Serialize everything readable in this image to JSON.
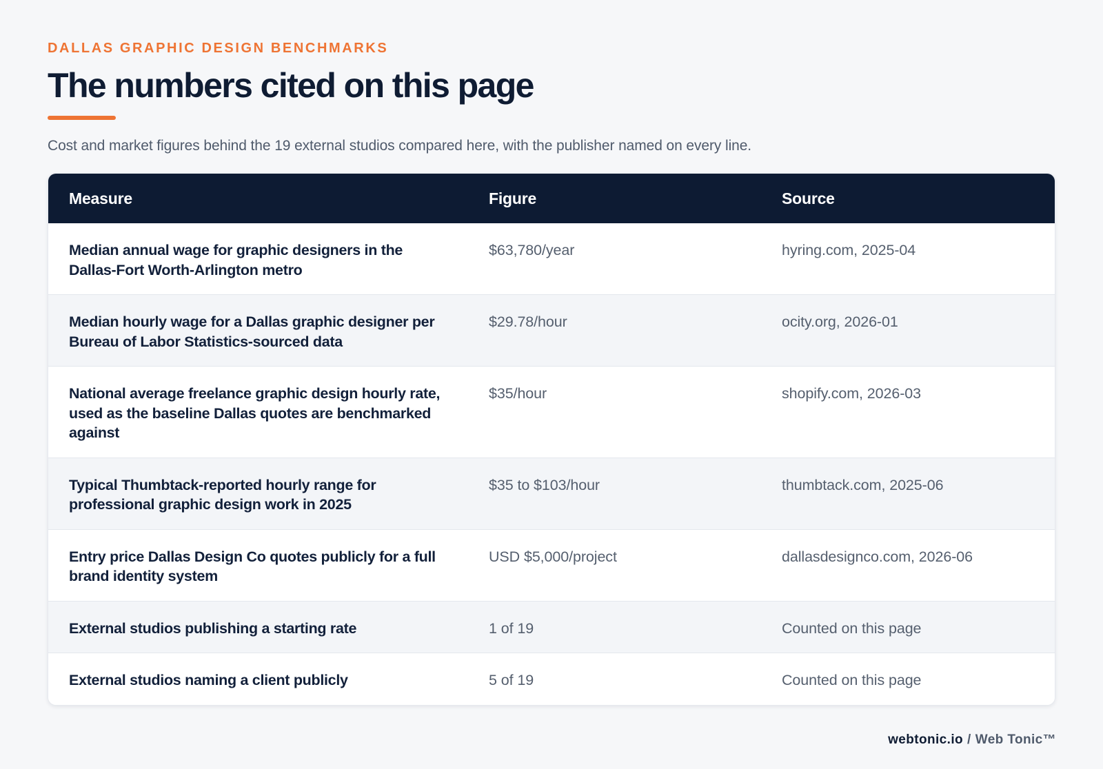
{
  "header": {
    "eyebrow": "DALLAS GRAPHIC DESIGN BENCHMARKS",
    "title": "The numbers cited on this page",
    "subtitle": "Cost and market figures behind the 19 external studios compared here, with the publisher named on every line."
  },
  "table": {
    "columns": [
      "Measure",
      "Figure",
      "Source"
    ],
    "rows": [
      {
        "measure": "Median annual wage for graphic designers in the Dallas-Fort Worth-Arlington metro",
        "figure": "$63,780/year",
        "source": "hyring.com, 2025-04"
      },
      {
        "measure": "Median hourly wage for a Dallas graphic designer per Bureau of Labor Statistics-sourced data",
        "figure": "$29.78/hour",
        "source": "ocity.org, 2026-01"
      },
      {
        "measure": "National average freelance graphic design hourly rate, used as the baseline Dallas quotes are benchmarked against",
        "figure": "$35/hour",
        "source": "shopify.com, 2026-03"
      },
      {
        "measure": "Typical Thumbtack-reported hourly range for professional graphic design work in 2025",
        "figure": "$35 to $103/hour",
        "source": "thumbtack.com, 2025-06"
      },
      {
        "measure": "Entry price Dallas Design Co quotes publicly for a full brand identity system",
        "figure": "USD $5,000/project",
        "source": "dallasdesignco.com, 2026-06"
      },
      {
        "measure": "External studios publishing a starting rate",
        "figure": "1 of 19",
        "source": "Counted on this page"
      },
      {
        "measure": "External studios naming a client publicly",
        "figure": "5 of 19",
        "source": "Counted on this page"
      }
    ]
  },
  "footer": {
    "site": "webtonic.io",
    "separator": "/",
    "brand": "Web Tonic™"
  },
  "colors": {
    "accent": "#ee7434",
    "header_bg": "#0d1b33",
    "page_bg": "#f6f7f9"
  }
}
